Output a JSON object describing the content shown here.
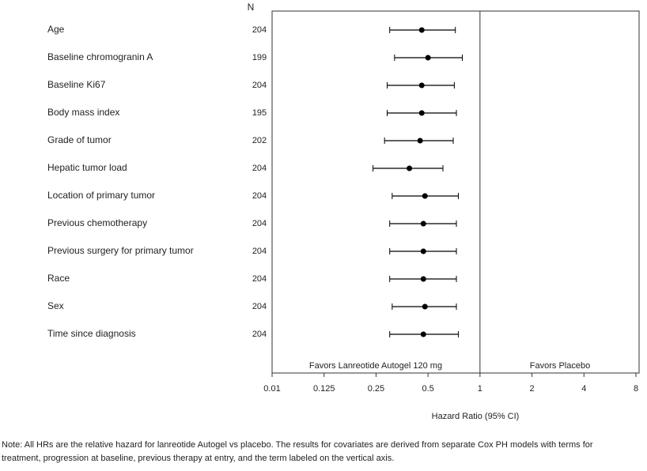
{
  "chart_data": {
    "type": "forest",
    "column_header": "N",
    "categories": [
      "Age",
      "Baseline chromogranin A",
      "Baseline Ki67",
      "Body mass index",
      "Grade of tumor",
      "Hepatic tumor load",
      "Location of primary tumor",
      "Previous chemotherapy",
      "Previous surgery for primary tumor",
      "Race",
      "Sex",
      "Time since diagnosis"
    ],
    "n": [
      204,
      199,
      204,
      195,
      202,
      204,
      204,
      204,
      204,
      204,
      204,
      204
    ],
    "values": [
      0.46,
      0.5,
      0.46,
      0.46,
      0.45,
      0.39,
      0.48,
      0.47,
      0.47,
      0.47,
      0.48,
      0.47
    ],
    "ci_low": [
      0.3,
      0.32,
      0.29,
      0.29,
      0.28,
      0.24,
      0.31,
      0.3,
      0.3,
      0.3,
      0.31,
      0.3
    ],
    "ci_high": [
      0.72,
      0.79,
      0.71,
      0.73,
      0.7,
      0.61,
      0.75,
      0.73,
      0.73,
      0.73,
      0.73,
      0.75
    ],
    "color": "#000000",
    "xlim": [
      0.01,
      8
    ],
    "xticks": [
      0.01,
      0.125,
      0.25,
      0.5,
      1,
      2,
      4,
      8
    ],
    "reference": 1,
    "favors_left": "Favors Lanreotide Autogel 120 mg",
    "favors_right": "Favors Placebo",
    "xlabel": "Hazard Ratio (95% CI)",
    "note": [
      "Note: All HRs are the relative hazard for lanreotide Autogel vs placebo. The results for covariates are derived from separate Cox PH models with terms for",
      "treatment, progression at baseline, previous therapy at entry, and the term labeled on the vertical axis."
    ]
  }
}
